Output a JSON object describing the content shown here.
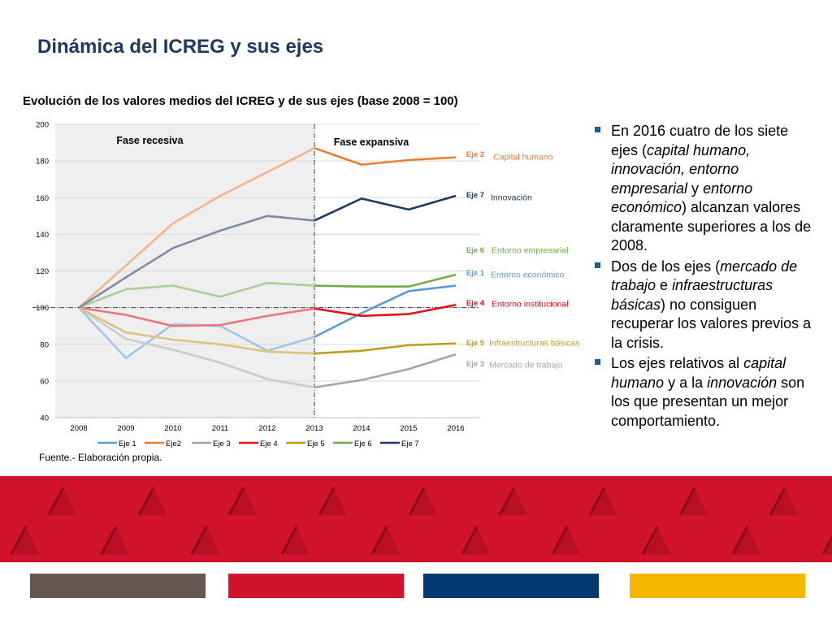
{
  "page": {
    "title": "Dinámica del ICREG y sus ejes",
    "chart_title": "Evolución de los valores medios del ICREG y de sus ejes (base 2008 = 100)",
    "source_label": "Fuente.-",
    "source_text": "Elaboración propia."
  },
  "bullets": [
    {
      "parts": [
        {
          "t": "En 2016 cuatro de los siete ejes ("
        },
        {
          "t": "capital humano, innovación, entorno empresarial",
          "i": true
        },
        {
          "t": " y "
        },
        {
          "t": "entorno económico",
          "i": true
        },
        {
          "t": ") alcanzan valores claramente superiores a los de 2008."
        }
      ]
    },
    {
      "parts": [
        {
          "t": "Dos de los ejes ("
        },
        {
          "t": "mercado de trabajo",
          "i": true
        },
        {
          "t": " e "
        },
        {
          "t": "infraestructuras básicas",
          "i": true
        },
        {
          "t": ") no consiguen recuperar los valores previos a la crisis."
        }
      ]
    },
    {
      "parts": [
        {
          "t": "Los ejes relativos al "
        },
        {
          "t": "capital humano",
          "i": true
        },
        {
          "t": " y a la "
        },
        {
          "t": "innovación",
          "i": true
        },
        {
          "t": " son los que presentan un mejor comportamiento."
        }
      ]
    }
  ],
  "colors": {
    "title": "#1f3864",
    "band": "#d1142c",
    "swatches": [
      "#645650",
      "#d1142c",
      "#003a70",
      "#f5b800"
    ]
  },
  "chart_data": {
    "type": "line",
    "x": [
      "2008",
      "2009",
      "2010",
      "2011",
      "2012",
      "2013",
      "2014",
      "2015",
      "2016"
    ],
    "ylim": [
      40,
      200
    ],
    "yticks": [
      40,
      60,
      80,
      100,
      120,
      140,
      160,
      180,
      200
    ],
    "reference_line": 100,
    "phase_split": "2013",
    "phases": [
      "Fase recesiva",
      "Fase expansiva"
    ],
    "grid": true,
    "legend_position": "bottom",
    "series": [
      {
        "name": "Eje 1",
        "color": "#5b9bd5",
        "values": [
          100,
          72.5,
          91,
          90,
          76.5,
          84,
          97,
          109,
          112
        ],
        "label": "Eje 1",
        "desc": "Entorno económico",
        "dim_to": "2013"
      },
      {
        "name": "Eje2",
        "color": "#ed7d31",
        "values": [
          100,
          123,
          146,
          161,
          174,
          187,
          178,
          180.5,
          182
        ],
        "label": "Eje 2",
        "desc": "Capital humano",
        "dim_to": "2013"
      },
      {
        "name": "Eje 3",
        "color": "#a5a5a5",
        "values": [
          100,
          83,
          77,
          70,
          61,
          56.5,
          60.5,
          66.5,
          74.5
        ],
        "label": "Eje 3",
        "desc": "Mercado de trabajo",
        "dim_to": "2013"
      },
      {
        "name": "Eje 4",
        "color": "#e3121b",
        "values": [
          100,
          96,
          90,
          90.5,
          95.5,
          99.5,
          95.5,
          96.5,
          101.5
        ],
        "label": "Eje 4",
        "desc": "Entorno institucional",
        "dim_to": "2013"
      },
      {
        "name": "Eje 5",
        "color": "#c39b1a",
        "values": [
          100,
          86.5,
          82.5,
          80,
          76,
          75,
          76.5,
          79.5,
          80.5
        ],
        "label": "Eje 5",
        "desc": "Infraestructuras básicas",
        "dim_to": "2013"
      },
      {
        "name": "Eje 6",
        "color": "#70ad47",
        "values": [
          100,
          110,
          112,
          106,
          113.5,
          112,
          111.5,
          111.5,
          118
        ],
        "label": "Eje 6",
        "desc": "Entorno empresarial",
        "dim_to": "2013"
      },
      {
        "name": "Eje 7",
        "color": "#1f3864",
        "values": [
          100,
          116.5,
          132.5,
          142,
          150,
          147.5,
          159.5,
          153.5,
          161
        ],
        "label": "Eje 7",
        "desc": "Innovación",
        "dim_to": "2013"
      }
    ]
  }
}
